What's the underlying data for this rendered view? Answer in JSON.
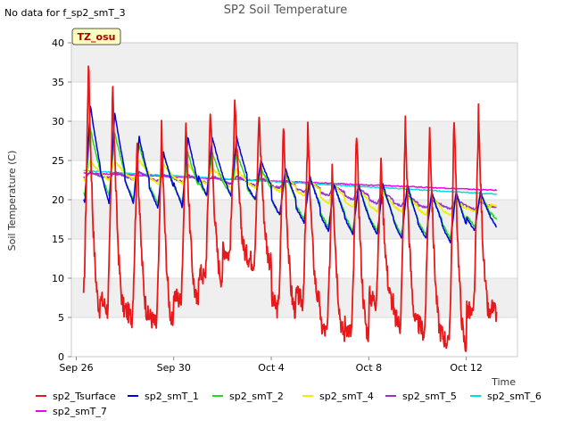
{
  "chart_data": {
    "type": "line",
    "title": "SP2 Soil Temperature",
    "no_data_note": "No data for f_sp2_smT_3",
    "site_badge": "TZ_osu",
    "xlabel": "Time",
    "ylabel": "Soil Temperature (C)",
    "x_unit": "days since Sep 26",
    "xlim": [
      -0.2,
      18.1
    ],
    "ylim": [
      0,
      40
    ],
    "yticks": [
      0,
      5,
      10,
      15,
      20,
      25,
      30,
      35,
      40
    ],
    "xticks": [
      {
        "value": 0,
        "label": "Sep 26"
      },
      {
        "value": 4,
        "label": "Sep 30"
      },
      {
        "value": 8,
        "label": "Oct 4"
      },
      {
        "value": 12,
        "label": "Oct 8"
      },
      {
        "value": 16,
        "label": "Oct 12"
      }
    ],
    "shaded_bands": [
      [
        5,
        10
      ],
      [
        15,
        20
      ],
      [
        25,
        30
      ],
      [
        35,
        40
      ]
    ],
    "legend_position": "bottom",
    "day_start": 0.3,
    "day_end": 17.25,
    "series": [
      {
        "name": "sp2_Tsurface",
        "color": "#e8191a",
        "daily_max": [
          38,
          35,
          27,
          29,
          30,
          32,
          33,
          31,
          30,
          29,
          25,
          29,
          25,
          30,
          30,
          31,
          31,
          32
        ],
        "daily_min": [
          6,
          6,
          5,
          4,
          7,
          10,
          13,
          12,
          6,
          7,
          3,
          3,
          7,
          4,
          3,
          1.5,
          5,
          5
        ]
      },
      {
        "name": "sp2_smT_1",
        "color": "#0000dd",
        "daily_max": [
          32,
          31,
          28,
          26,
          28,
          28,
          28,
          25,
          24,
          23,
          22,
          22,
          22,
          22,
          21,
          21,
          21,
          21
        ],
        "daily_min": [
          19.5,
          19.5,
          19.5,
          19,
          19,
          20.5,
          20.5,
          20,
          18,
          17,
          16,
          15.5,
          15.5,
          15,
          15,
          14.5,
          16,
          16
        ]
      },
      {
        "name": "sp2_smT_2",
        "color": "#22dd22",
        "daily_max": [
          29,
          28.5,
          27,
          26,
          26,
          26,
          26,
          24,
          23.5,
          23,
          22,
          22,
          21.5,
          21.5,
          21,
          21,
          21,
          21
        ],
        "daily_min": [
          20.5,
          20.5,
          20,
          19.5,
          19.5,
          20.5,
          20.5,
          20,
          18,
          17.5,
          16.5,
          16,
          16,
          15.5,
          15.5,
          15,
          16.5,
          17
        ]
      },
      {
        "name": "sp2_smT_4",
        "color": "#eeee00",
        "daily_max": [
          25,
          25,
          25,
          24.5,
          24.5,
          24,
          24,
          23.5,
          23,
          22.5,
          22,
          21.5,
          21,
          20.5,
          20.5,
          20,
          20,
          20
        ],
        "daily_min": [
          22.5,
          22.5,
          22.5,
          22,
          22,
          22,
          21.5,
          21.5,
          21,
          20.5,
          19.5,
          19,
          18.5,
          18.5,
          18,
          18,
          18.5,
          19
        ]
      },
      {
        "name": "sp2_smT_5",
        "color": "#9932cc",
        "daily_max": [
          23.5,
          23.5,
          23.5,
          23.2,
          23.2,
          23,
          23,
          22.8,
          22.5,
          22.2,
          21.8,
          21.5,
          21,
          20.5,
          20,
          20,
          19.8,
          19.5
        ],
        "daily_min": [
          22.8,
          22.8,
          22.6,
          22.4,
          22.3,
          22.2,
          22,
          21.8,
          21.5,
          21,
          20.5,
          20,
          19.5,
          19.2,
          19,
          18.8,
          18.8,
          19
        ]
      },
      {
        "name": "sp2_smT_6",
        "color": "#00dddd",
        "start": 23.7,
        "end": 20.7
      },
      {
        "name": "sp2_smT_7",
        "color": "#ee00ee",
        "start": 23.4,
        "end": 21.2
      }
    ]
  }
}
